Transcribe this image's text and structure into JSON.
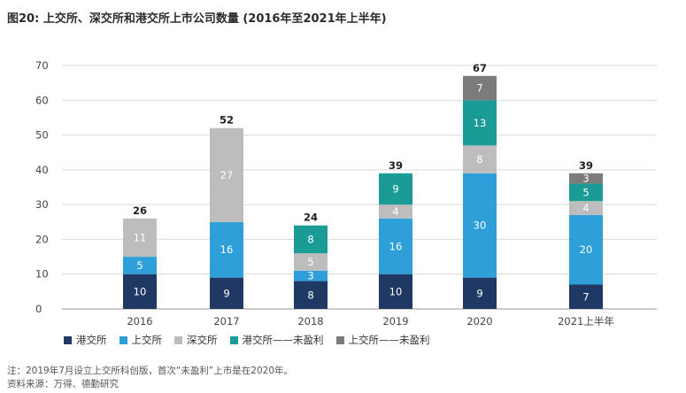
{
  "colors": {
    "hk_main": "#1f3864",
    "sh_main": "#2e9fd8",
    "sz_main": "#bdbdbd",
    "hk_unprofit": "#1a9b96",
    "sh_unprofit": "#7b7b7b"
  },
  "chart_data": {
    "type": "bar",
    "stacked": true,
    "title": "图20: 上交所、深交所和港交所上市公司数量 (2016年至2021年上半年)",
    "categories": [
      "2016",
      "2017",
      "2018",
      "2019",
      "2020",
      "2021上半年"
    ],
    "ylim": [
      0,
      70
    ],
    "yticks": [
      0,
      10,
      20,
      30,
      40,
      50,
      60,
      70
    ],
    "grid": true,
    "legend_position": "bottom",
    "series": [
      {
        "name": "港交所",
        "color_key": "hk_main",
        "values": [
          10,
          9,
          8,
          10,
          9,
          7
        ]
      },
      {
        "name": "上交所",
        "color_key": "sh_main",
        "values": [
          5,
          16,
          3,
          16,
          30,
          20
        ]
      },
      {
        "name": "深交所",
        "color_key": "sz_main",
        "values": [
          11,
          27,
          5,
          4,
          8,
          4
        ]
      },
      {
        "name": "港交所——未盈利",
        "color_key": "hk_unprofit",
        "values": [
          0,
          0,
          8,
          9,
          13,
          5
        ]
      },
      {
        "name": "上交所——未盈利",
        "color_key": "sh_unprofit",
        "values": [
          0,
          0,
          0,
          0,
          7,
          3
        ]
      }
    ],
    "totals": [
      26,
      52,
      24,
      39,
      67,
      39
    ]
  },
  "notes": {
    "line1": "注：2019年7月设立上交所科创版，首次“未盈利”上市是在2020年。",
    "line2": "资料来源：万得、德勤研究"
  }
}
